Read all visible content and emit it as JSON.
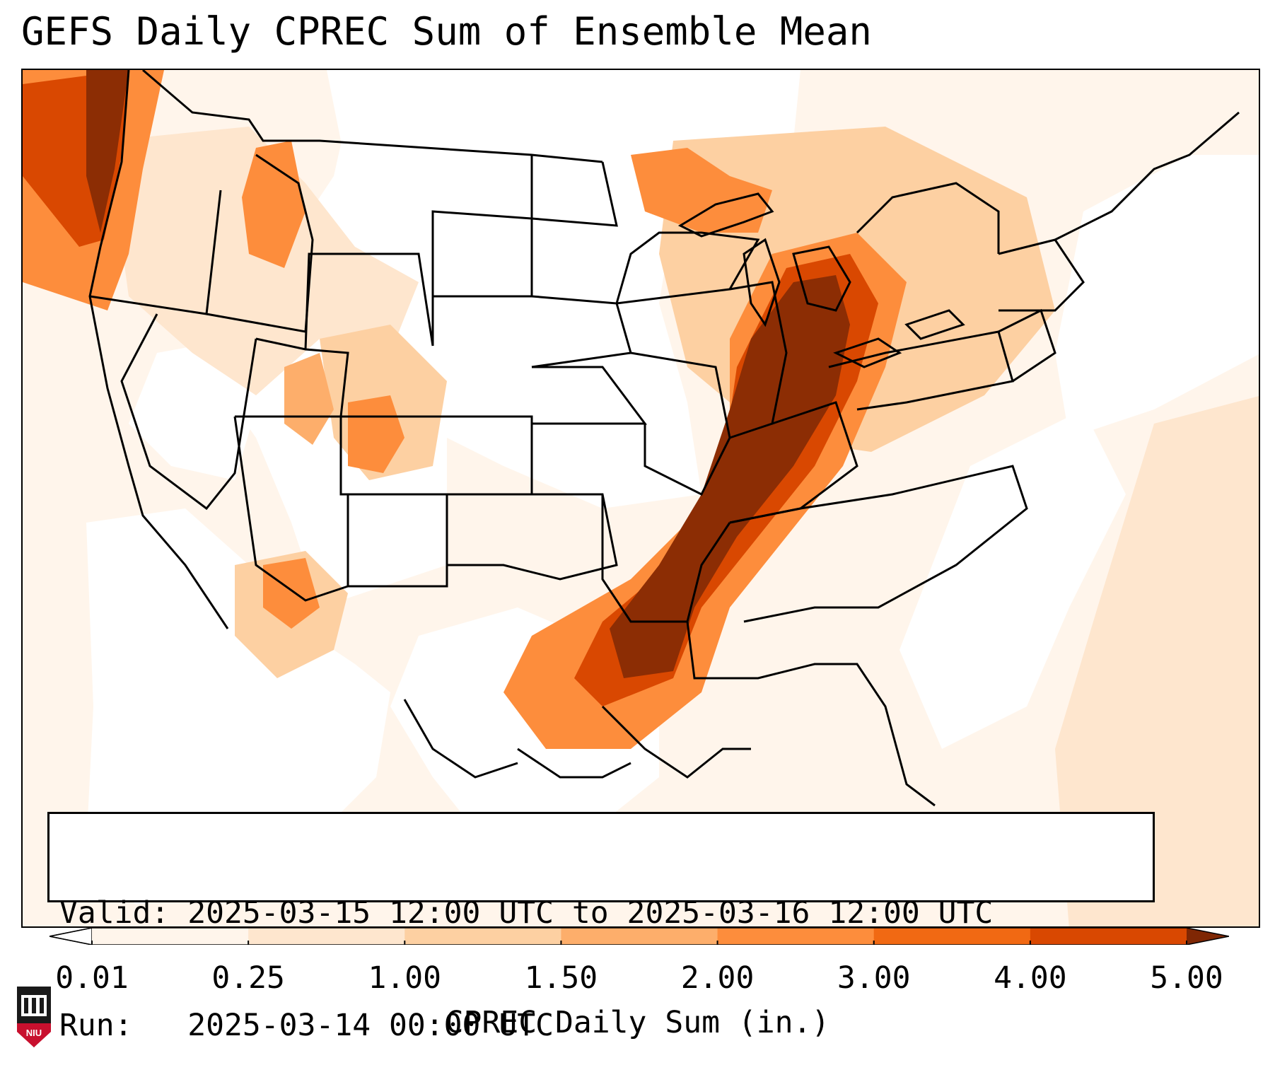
{
  "title": "GEFS Daily CPREC Sum of Ensemble Mean",
  "info": {
    "valid_label": "Valid:",
    "valid_value": "2025-03-15 12:00 UTC to 2025-03-16 12:00 UTC",
    "run_label": "Run:",
    "run_value": "2025-03-14 00:00 UTC"
  },
  "colorbar": {
    "label": "CPREC Daily Sum (in.)",
    "ticks": [
      "0.01",
      "0.25",
      "1.00",
      "1.50",
      "2.00",
      "3.00",
      "4.00",
      "5.00"
    ],
    "colors": [
      "#fff5eb",
      "#fee6ce",
      "#fdd0a2",
      "#fdae6b",
      "#fd8d3c",
      "#f16913",
      "#d94801",
      "#8c2d04"
    ],
    "under_color": "#ffffff",
    "over_color": "#7f2704"
  },
  "map": {
    "region": "Contiguous United States",
    "heavy_color": "#8c2d04",
    "line_color": "#000000"
  },
  "logo": {
    "text": "NIU",
    "color": "#c8102e"
  }
}
